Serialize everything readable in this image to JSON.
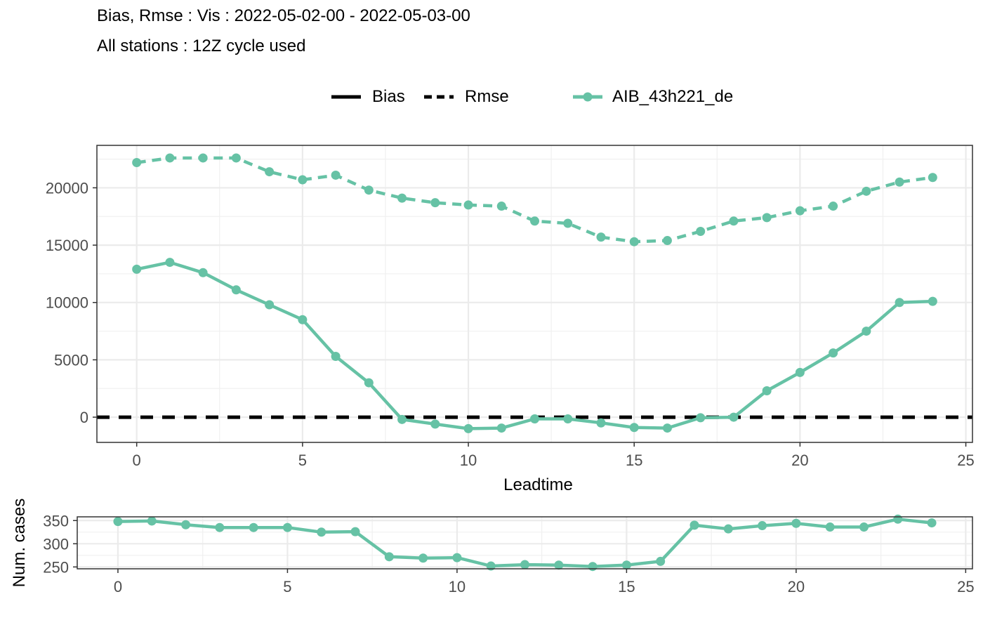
{
  "title": "Bias, Rmse : Vis : 2022-05-02-00 - 2022-05-03-00",
  "subtitle": "All stations : 12Z cycle used",
  "legend": {
    "bias_label": "Bias",
    "rmse_label": "Rmse",
    "model_label": "AIB_43h221_de"
  },
  "colors": {
    "series": "#66c2a5",
    "reference": "#000000"
  },
  "chart_data": [
    {
      "type": "line",
      "xlabel": "Leadtime",
      "ylabel": "",
      "xlim": [
        -1.2,
        25.2
      ],
      "ylim": [
        -2200,
        23700
      ],
      "x_ticks": [
        0,
        5,
        10,
        15,
        20,
        25
      ],
      "y_ticks": [
        0,
        5000,
        10000,
        15000,
        20000
      ],
      "grid": true,
      "legend_position": "top",
      "zero_line": {
        "y": 0,
        "style": "dashed",
        "color": "#000000"
      },
      "x": [
        0,
        1,
        2,
        3,
        4,
        5,
        6,
        7,
        8,
        9,
        10,
        11,
        12,
        13,
        14,
        15,
        16,
        17,
        18,
        19,
        20,
        21,
        22,
        23,
        24
      ],
      "series": [
        {
          "name": "Rmse",
          "model": "AIB_43h221_de",
          "style": "dashed",
          "values": [
            22200,
            22600,
            22600,
            22600,
            21400,
            20700,
            21100,
            19800,
            19100,
            18700,
            18500,
            18400,
            17100,
            16900,
            15700,
            15300,
            15400,
            16200,
            17100,
            17400,
            18000,
            18400,
            19700,
            20500,
            20900
          ]
        },
        {
          "name": "Bias",
          "model": "AIB_43h221_de",
          "style": "solid",
          "values": [
            12900,
            13500,
            12600,
            11100,
            9800,
            8500,
            5300,
            3000,
            -200,
            -600,
            -1000,
            -950,
            -150,
            -150,
            -500,
            -900,
            -950,
            -50,
            0,
            2300,
            3900,
            5600,
            7500,
            10000,
            10100
          ]
        }
      ]
    },
    {
      "type": "line",
      "xlabel": "",
      "ylabel": "Num. cases",
      "xlim": [
        -1.2,
        25.2
      ],
      "ylim": [
        246,
        358
      ],
      "x_ticks": [
        0,
        5,
        10,
        15,
        20,
        25
      ],
      "y_ticks": [
        250,
        300,
        350
      ],
      "grid": true,
      "x": [
        0,
        1,
        2,
        3,
        4,
        5,
        6,
        7,
        8,
        9,
        10,
        11,
        12,
        13,
        14,
        15,
        16,
        17,
        18,
        19,
        20,
        21,
        22,
        23,
        24
      ],
      "series": [
        {
          "name": "",
          "values": [
            348,
            349,
            341,
            335,
            335,
            335,
            325,
            326,
            272,
            269,
            270,
            252,
            255,
            254,
            251,
            254,
            262,
            340,
            332,
            339,
            344,
            336,
            336,
            353,
            345
          ]
        }
      ]
    }
  ]
}
